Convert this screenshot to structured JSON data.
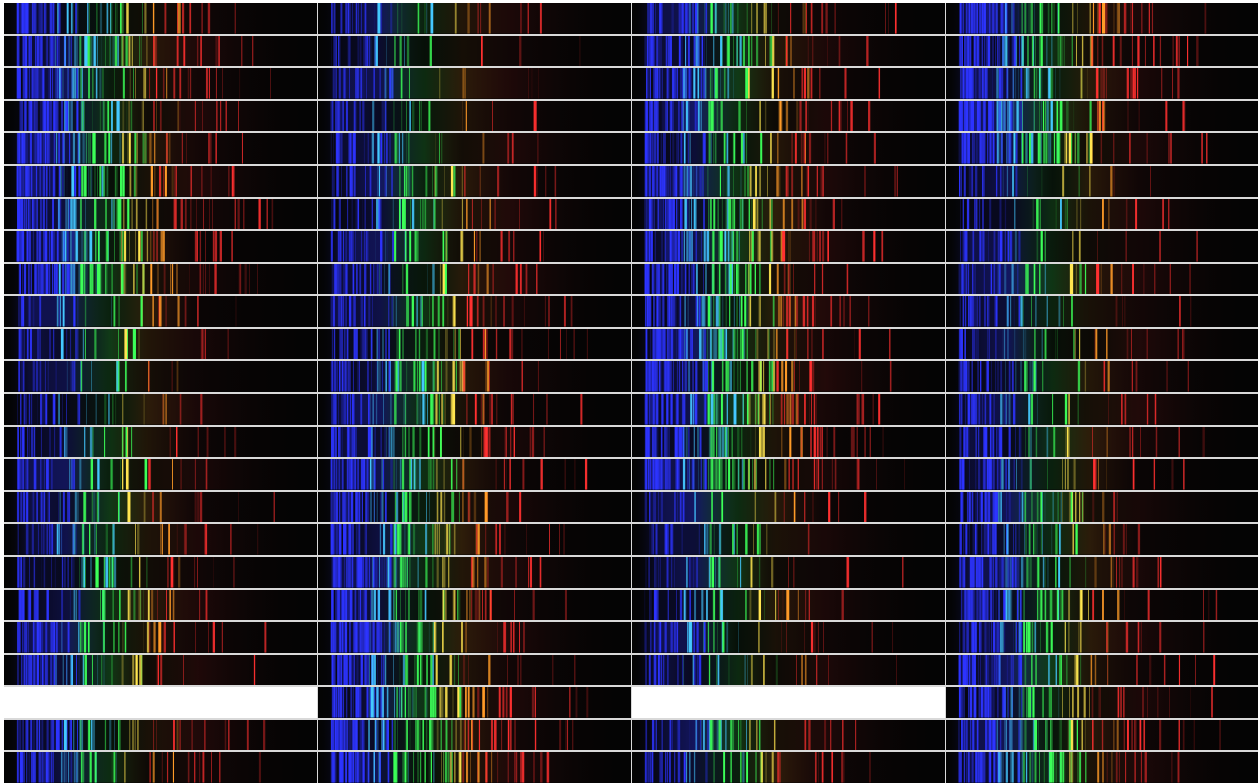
{
  "figure": {
    "columns": 4,
    "rows": 24,
    "blank_cells": [
      {
        "column": 1,
        "row": 22
      },
      {
        "column": 3,
        "row": 22
      }
    ],
    "colors": {
      "background": "#ffffff",
      "separator": "#d9d9d9",
      "spectrum_background": "#040404",
      "blue": "#2d34ff",
      "cyan": "#44c8ff",
      "green": "#3cff58",
      "yellow": "#ffe550",
      "orange": "#ff9b28",
      "red": "#ff3030"
    }
  }
}
